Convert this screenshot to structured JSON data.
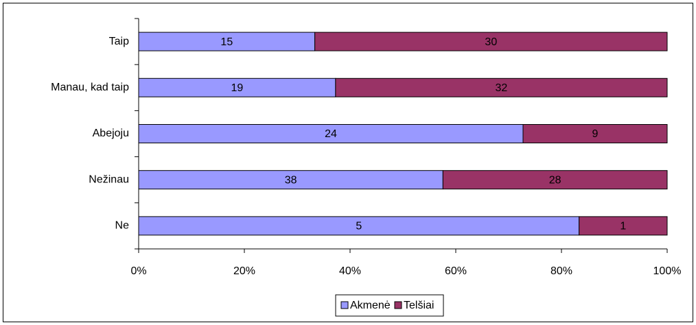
{
  "chart_data": {
    "type": "bar",
    "orientation": "horizontal",
    "stack": "percent",
    "categories": [
      "Taip",
      "Manau, kad taip",
      "Abejoju",
      "Nežinau",
      "Ne"
    ],
    "series": [
      {
        "name": "Akmenė",
        "color": "#9999ff",
        "values": [
          15,
          19,
          24,
          38,
          5
        ]
      },
      {
        "name": "Telšiai",
        "color": "#993366",
        "values": [
          30,
          32,
          9,
          28,
          1
        ]
      }
    ],
    "xlim": [
      0,
      100
    ],
    "xticks": [
      {
        "value": 0,
        "label": "0%"
      },
      {
        "value": 20,
        "label": "20%"
      },
      {
        "value": 40,
        "label": "40%"
      },
      {
        "value": 60,
        "label": "60%"
      },
      {
        "value": 80,
        "label": "80%"
      },
      {
        "value": 100,
        "label": "100%"
      }
    ],
    "legend": "bottom"
  }
}
